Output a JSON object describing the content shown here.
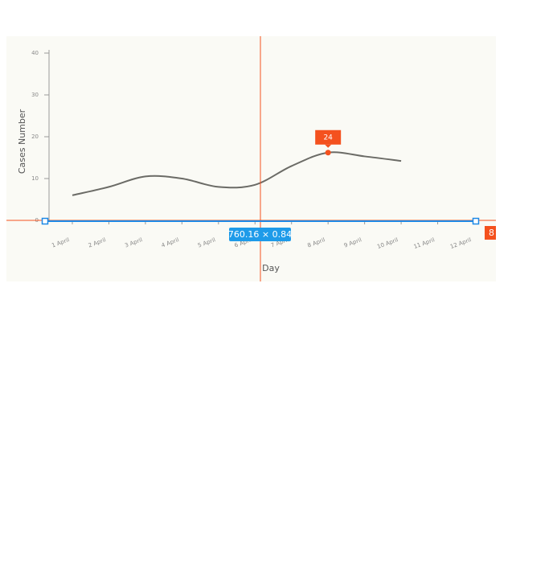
{
  "chart_data": {
    "type": "line",
    "x_label": "Day",
    "y_label": "Cases Number",
    "categories": [
      "1 April",
      "2 April",
      "3 April",
      "4 April",
      "5 April",
      "6 April",
      "7 April",
      "8 April",
      "9 April",
      "10 April",
      "11 April",
      "12 April"
    ],
    "series": [
      {
        "color": "#6b6b66",
        "values": [
          6,
          8,
          10.5,
          10,
          8,
          8.5,
          13,
          16.2,
          15.3,
          14.2,
          null,
          null
        ]
      }
    ],
    "ylim": [
      0,
      40
    ],
    "yticks": [
      0,
      10,
      20,
      30,
      40
    ],
    "grid": false,
    "tooltip": "24",
    "highlight_color": "#f4511e"
  },
  "overlay": {
    "dimension_label": "760.16 × 0.84",
    "badge": "8"
  }
}
